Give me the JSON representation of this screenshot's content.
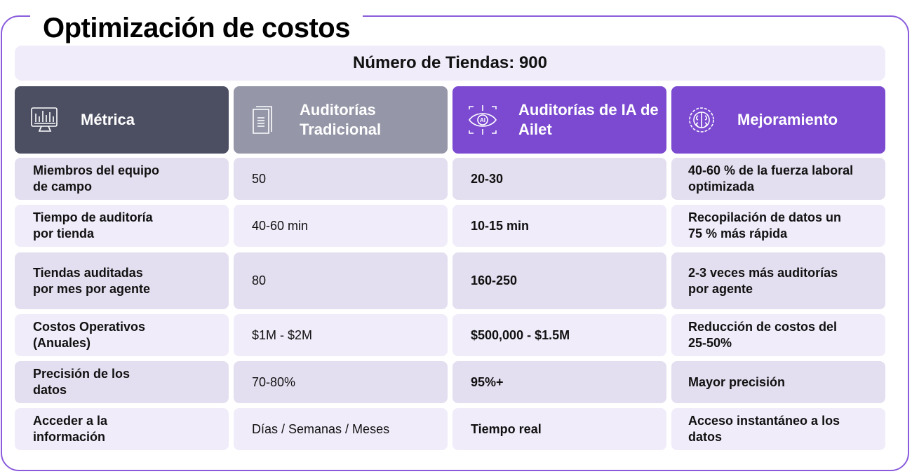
{
  "title": "Optimización de costos",
  "banner": "Número de Tiendas: 900",
  "headers": [
    {
      "label": "Métrica",
      "icon": "monitor-chart-icon",
      "color": "#4c4f62"
    },
    {
      "label": "Auditorías Tradicional",
      "icon": "document-icon",
      "color": "#9597a8"
    },
    {
      "label": "Auditorías de IA de Ailet",
      "icon": "ai-eye-icon",
      "color": "#7b4ad0"
    },
    {
      "label": "Mejoramiento",
      "icon": "brain-gear-icon",
      "color": "#7b4ad0"
    }
  ],
  "rows": [
    {
      "metric": "Miembros del equipo de campo",
      "traditional": "50",
      "ai": "20-30",
      "improvement": "40-60 % de la fuerza laboral optimizada"
    },
    {
      "metric": "Tiempo de auditoría por tienda",
      "traditional": "40-60 min",
      "ai": "10-15 min",
      "improvement": "Recopilación de datos un 75 % más rápida"
    },
    {
      "metric": "Tiendas auditadas por mes por agente",
      "traditional": "80",
      "ai": "160-250",
      "improvement": "2-3 veces más auditorías por agente"
    },
    {
      "metric": "Costos Operativos (Anuales)",
      "traditional": "$1M - $2M",
      "ai": "$500,000 - $1.5M",
      "improvement": "Reducción de costos del 25-50%"
    },
    {
      "metric": "Precisión de los datos",
      "traditional": "70-80%",
      "ai": "95%+",
      "improvement": "Mayor precisión"
    },
    {
      "metric": "Acceder a la información",
      "traditional": "Días / Semanas / Meses",
      "ai": "Tiempo real",
      "improvement": "Acceso instantáneo a los datos"
    }
  ]
}
